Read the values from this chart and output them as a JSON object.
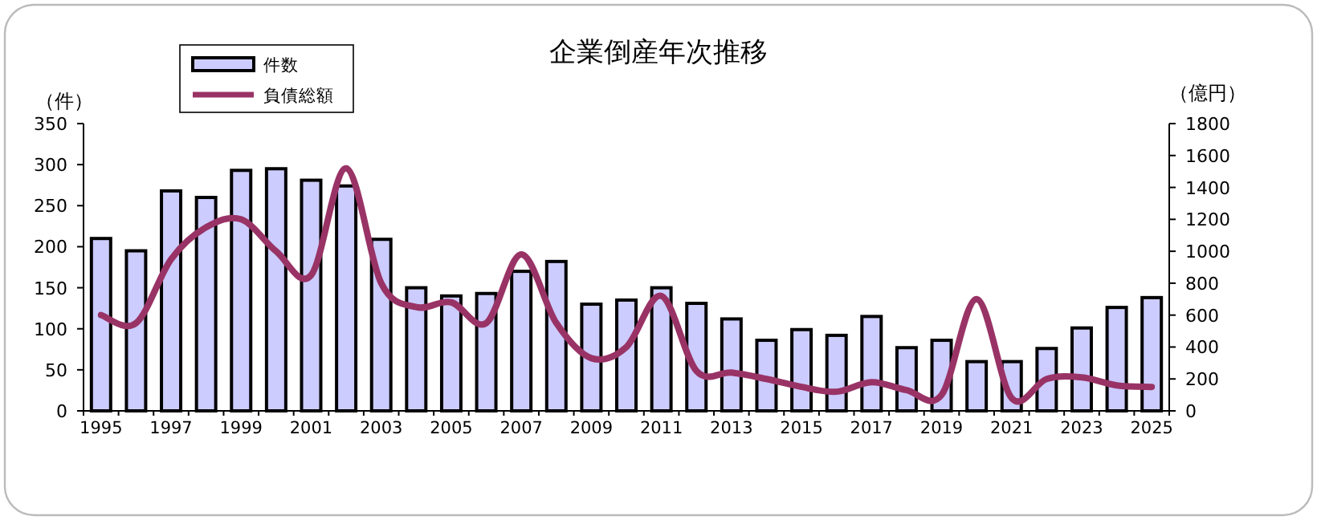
{
  "chart_data": {
    "type": "bar",
    "title": "企業倒産年次推移",
    "ylabel": "（件）",
    "y2label": "（億円）",
    "categories": [
      "1995",
      null,
      "1997",
      null,
      "1999",
      null,
      "2001",
      null,
      "2003",
      null,
      "2005",
      null,
      "2007",
      null,
      "2009",
      null,
      "2011",
      null,
      "2013",
      null,
      "2015",
      null,
      "2017",
      null,
      "2019",
      null,
      "2021",
      null,
      "2023",
      null,
      "2025"
    ],
    "series": [
      {
        "name": "件数",
        "color": "#ccccff",
        "values": [
          210,
          195,
          268,
          260,
          293,
          295,
          281,
          274,
          209,
          150,
          140,
          143,
          170,
          182,
          130,
          135,
          150,
          131,
          112,
          86,
          99,
          92,
          115,
          77,
          86,
          60,
          60,
          76,
          101,
          126,
          138
        ]
      },
      {
        "name": "負債総額",
        "type": "line",
        "axis": "y2",
        "color": "#993366",
        "values": [
          600,
          550,
          950,
          1150,
          1200,
          1000,
          850,
          1520,
          800,
          650,
          680,
          550,
          980,
          550,
          330,
          400,
          720,
          250,
          240,
          200,
          150,
          120,
          180,
          130,
          100,
          700,
          80,
          200,
          210,
          160,
          150
        ]
      }
    ],
    "ylim": [
      0,
      350
    ],
    "yticks": [
      0,
      50,
      100,
      150,
      200,
      250,
      300,
      350
    ],
    "y2lim": [
      0,
      1800
    ],
    "y2ticks": [
      0,
      200,
      400,
      600,
      800,
      1000,
      1200,
      1400,
      1600,
      1800
    ],
    "legend": "top left"
  }
}
